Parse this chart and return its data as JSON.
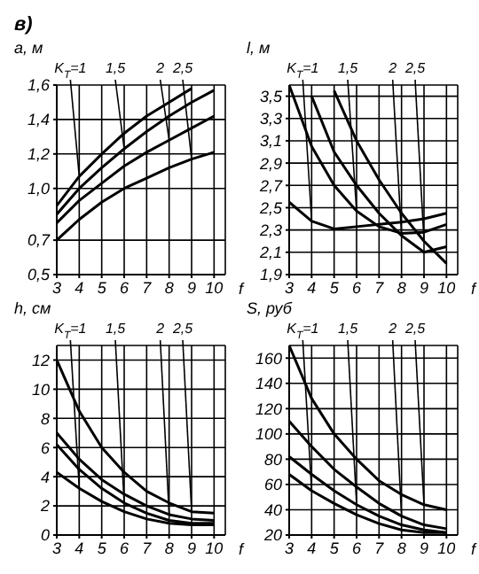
{
  "chart_data": [
    {
      "type": "line",
      "title": "в)",
      "ylabel": "a, м",
      "xlabel": "f",
      "x": [
        3,
        4,
        5,
        6,
        7,
        8,
        9,
        10
      ],
      "xlim": [
        3,
        10.5
      ],
      "xticks": [
        3,
        4,
        5,
        6,
        7,
        8,
        9,
        10
      ],
      "ylim": [
        0.5,
        1.6
      ],
      "yticks": [
        {
          "value": 0.5,
          "label": "0,5"
        },
        {
          "value": 0.7,
          "label": "0,7"
        },
        {
          "value": 1.0,
          "label": "1,0"
        },
        {
          "value": 1.2,
          "label": "1,2"
        },
        {
          "value": 1.4,
          "label": "1,4"
        },
        {
          "value": 1.6,
          "label": "1,6"
        }
      ],
      "grid": true,
      "series": [
        {
          "name": "K$_{T}$=1",
          "color": "#000000",
          "values": [
            0.9,
            1.07,
            1.2,
            1.32,
            1.42,
            1.5,
            1.58,
            null
          ]
        },
        {
          "name": "1,5",
          "color": "#000000",
          "values": [
            0.85,
            1.0,
            1.12,
            1.23,
            1.33,
            1.42,
            1.5,
            1.57
          ]
        },
        {
          "name": "2",
          "color": "#000000",
          "values": [
            0.8,
            0.93,
            1.03,
            1.13,
            1.21,
            1.28,
            1.35,
            1.42
          ]
        },
        {
          "name": "2,5",
          "color": "#000000",
          "values": [
            0.7,
            0.82,
            0.92,
            1.0,
            1.06,
            1.12,
            1.17,
            1.21
          ]
        }
      ]
    },
    {
      "type": "line",
      "ylabel": "l, м",
      "xlabel": "f",
      "x": [
        3,
        4,
        5,
        6,
        7,
        8,
        9,
        10
      ],
      "xlim": [
        3,
        10.5
      ],
      "xticks": [
        3,
        4,
        5,
        6,
        7,
        8,
        9,
        10
      ],
      "ylim": [
        1.9,
        3.6
      ],
      "yticks": [
        {
          "value": 1.9,
          "label": "1,9"
        },
        {
          "value": 2.1,
          "label": "2,1"
        },
        {
          "value": 2.3,
          "label": "2,3"
        },
        {
          "value": 2.5,
          "label": "2,5"
        },
        {
          "value": 2.7,
          "label": "2,7"
        },
        {
          "value": 2.9,
          "label": "2,9"
        },
        {
          "value": 3.1,
          "label": "3,1"
        },
        {
          "value": 3.3,
          "label": "3,3"
        },
        {
          "value": 3.5,
          "label": "3,5"
        }
      ],
      "grid": true,
      "series": [
        {
          "name": "K$_{T}$=1",
          "color": "#000000",
          "values": [
            2.55,
            2.38,
            2.31,
            2.33,
            2.35,
            2.37,
            2.4,
            2.45
          ]
        },
        {
          "name": "1,5",
          "color": "#000000",
          "values": [
            3.6,
            3.05,
            2.7,
            2.47,
            2.33,
            2.27,
            2.28,
            2.35
          ]
        },
        {
          "name": "2",
          "color": "#000000",
          "values": [
            null,
            3.5,
            3.0,
            2.7,
            2.45,
            2.25,
            2.1,
            2.15
          ]
        },
        {
          "name": "2,5",
          "color": "#000000",
          "values": [
            null,
            null,
            3.55,
            3.1,
            2.75,
            2.45,
            2.2,
            2.0
          ]
        }
      ]
    },
    {
      "type": "line",
      "ylabel": "h, см",
      "xlabel": "f",
      "x": [
        3,
        4,
        5,
        6,
        7,
        8,
        9,
        10
      ],
      "xlim": [
        3,
        10.5
      ],
      "xticks": [
        3,
        4,
        5,
        6,
        7,
        8,
        9,
        10
      ],
      "ylim": [
        0,
        13
      ],
      "yticks": [
        0,
        2,
        4,
        6,
        8,
        10,
        12
      ],
      "grid": true,
      "series": [
        {
          "name": "K$_{T}$=1",
          "color": "#000000",
          "values": [
            4.3,
            3.2,
            2.3,
            1.6,
            1.1,
            0.8,
            0.7,
            0.7
          ]
        },
        {
          "name": "1,5",
          "color": "#000000",
          "values": [
            6.2,
            4.5,
            3.2,
            2.2,
            1.5,
            1.0,
            0.8,
            0.8
          ]
        },
        {
          "name": "2",
          "color": "#000000",
          "values": [
            7,
            5.2,
            3.8,
            2.8,
            2.0,
            1.4,
            1.1,
            1.0
          ]
        },
        {
          "name": "2,5",
          "color": "#000000",
          "values": [
            12,
            8.5,
            6,
            4.3,
            3,
            2.2,
            1.6,
            1.5
          ]
        }
      ]
    },
    {
      "type": "line",
      "ylabel": "S, руб",
      "xlabel": "f",
      "x": [
        3,
        4,
        5,
        6,
        7,
        8,
        9,
        10
      ],
      "xlim": [
        3,
        10.5
      ],
      "xticks": [
        3,
        4,
        5,
        6,
        7,
        8,
        9,
        10
      ],
      "ylim": [
        20,
        170
      ],
      "yticks": [
        20,
        40,
        60,
        80,
        100,
        120,
        140,
        160
      ],
      "grid": true,
      "series": [
        {
          "name": "K$_{T}$=1",
          "color": "#000000",
          "values": [
            68,
            55,
            45,
            36,
            29,
            24,
            22,
            22
          ]
        },
        {
          "name": "1,5",
          "color": "#000000",
          "values": [
            82,
            68,
            55,
            44,
            35,
            28,
            24,
            22
          ]
        },
        {
          "name": "2",
          "color": "#000000",
          "values": [
            110,
            90,
            72,
            58,
            45,
            35,
            28,
            25
          ]
        },
        {
          "name": "2,5",
          "color": "#000000",
          "values": [
            170,
            128,
            100,
            80,
            63,
            52,
            44,
            40
          ]
        }
      ]
    }
  ]
}
